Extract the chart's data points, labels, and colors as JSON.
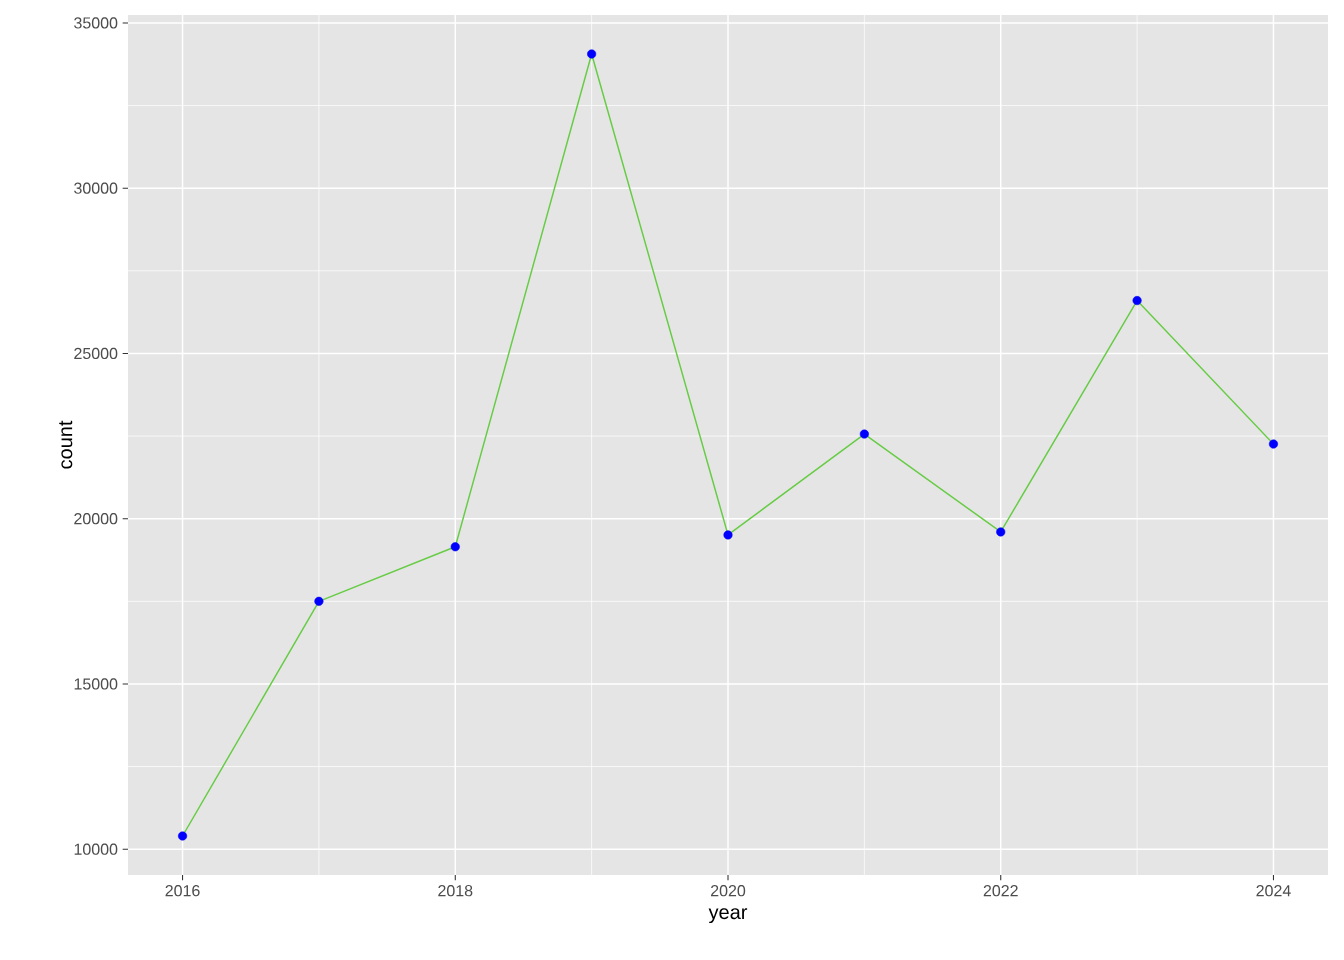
{
  "chart_data": {
    "type": "line",
    "xlabel": "year",
    "ylabel": "count",
    "x": [
      2016,
      2017,
      2018,
      2019,
      2020,
      2021,
      2022,
      2023,
      2024
    ],
    "series": [
      {
        "color": "#66cc44",
        "values": [
          10400,
          17500,
          19150,
          34060,
          19510,
          22560,
          19600,
          26600,
          22260
        ]
      },
      {
        "type": "scatter",
        "color": "#0000ff",
        "marker": "circle",
        "values": [
          10400,
          17500,
          19150,
          34060,
          19510,
          22560,
          19600,
          26600,
          22260
        ]
      }
    ],
    "xlim": [
      2015.6,
      2024.4
    ],
    "ylim": [
      9220,
      35240
    ],
    "xticks": [
      2016,
      2018,
      2020,
      2022,
      2024
    ],
    "yticks": [
      10000,
      15000,
      20000,
      25000,
      30000,
      35000
    ],
    "grid": true
  }
}
